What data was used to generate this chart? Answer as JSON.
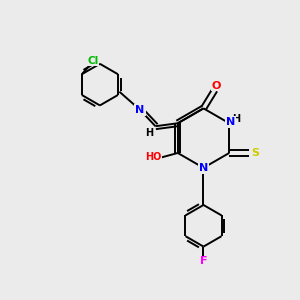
{
  "bg_color": "#ebebeb",
  "bond_color": "#000000",
  "atom_colors": {
    "N": "#0000ff",
    "O": "#ff0000",
    "S": "#cccc00",
    "F": "#ff00ff",
    "Cl": "#00bb00",
    "H": "#000000",
    "C": "#000000"
  },
  "bond_width": 1.4,
  "dbo": 0.09
}
